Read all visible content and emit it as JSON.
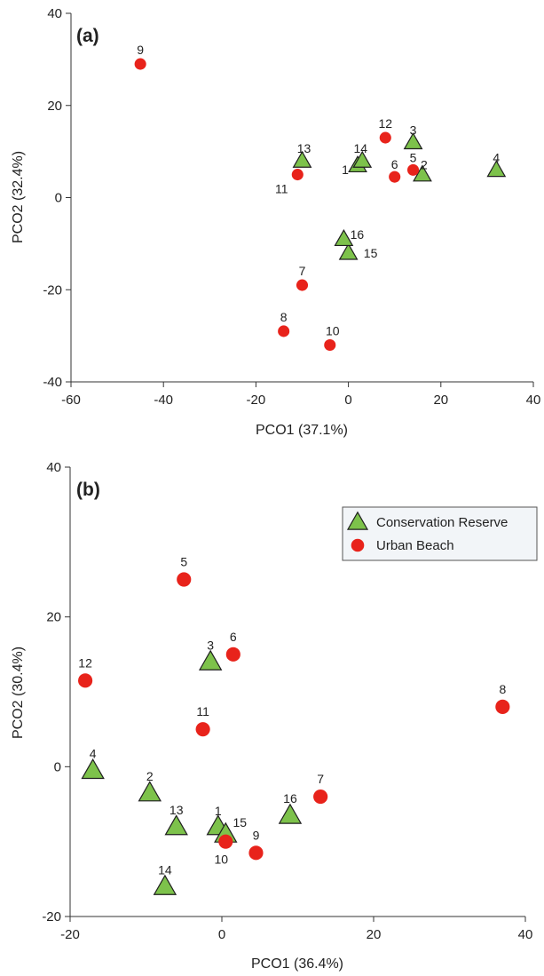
{
  "chart_data": [
    {
      "type": "scatter",
      "panel_label": "(a)",
      "xlabel": "PCO1 (37.1%)",
      "ylabel": "PCO2 (32.4%)",
      "xlim": [
        -60,
        40
      ],
      "ylim": [
        -40,
        40
      ],
      "xticks": [
        -60,
        -40,
        -20,
        0,
        20,
        40
      ],
      "yticks": [
        -40,
        -20,
        0,
        20,
        40
      ],
      "grid": false,
      "series": [
        {
          "name": "Conservation Reserve",
          "marker": "triangle",
          "color": "#7dc24b",
          "points": [
            {
              "label": "1",
              "x": 2,
              "y": 7
            },
            {
              "label": "2",
              "x": 16,
              "y": 5
            },
            {
              "label": "3",
              "x": 14,
              "y": 12
            },
            {
              "label": "4",
              "x": 32,
              "y": 6
            },
            {
              "label": "13",
              "x": -10,
              "y": 8
            },
            {
              "label": "14",
              "x": 3,
              "y": 8
            },
            {
              "label": "15",
              "x": 0,
              "y": -12
            },
            {
              "label": "16",
              "x": -1,
              "y": -9
            }
          ]
        },
        {
          "name": "Urban Beach",
          "marker": "circle",
          "color": "#e8231b",
          "points": [
            {
              "label": "5",
              "x": 14,
              "y": 6
            },
            {
              "label": "6",
              "x": 10,
              "y": 4.5
            },
            {
              "label": "7",
              "x": -10,
              "y": -19
            },
            {
              "label": "8",
              "x": -14,
              "y": -29
            },
            {
              "label": "9",
              "x": -45,
              "y": 29
            },
            {
              "label": "10",
              "x": -4,
              "y": -32
            },
            {
              "label": "11",
              "x": -11,
              "y": 5
            },
            {
              "label": "12",
              "x": 8,
              "y": 13
            }
          ]
        }
      ]
    },
    {
      "type": "scatter",
      "panel_label": "(b)",
      "xlabel": "PCO1 (36.4%)",
      "ylabel": "PCO2 (30.4%)",
      "xlim": [
        -20,
        40
      ],
      "ylim": [
        -20,
        40
      ],
      "xticks": [
        -20,
        0,
        20,
        40
      ],
      "yticks": [
        -20,
        0,
        20,
        40
      ],
      "grid": false,
      "legend_position": "top-right",
      "series": [
        {
          "name": "Conservation Reserve",
          "marker": "triangle",
          "color": "#7dc24b",
          "points": [
            {
              "label": "1",
              "x": -0.5,
              "y": -8
            },
            {
              "label": "2",
              "x": -9.5,
              "y": -3.5
            },
            {
              "label": "3",
              "x": -1.5,
              "y": 14
            },
            {
              "label": "4",
              "x": -17,
              "y": -0.5
            },
            {
              "label": "13",
              "x": -6,
              "y": -8
            },
            {
              "label": "14",
              "x": -7.5,
              "y": -16
            },
            {
              "label": "15",
              "x": 0.5,
              "y": -9
            },
            {
              "label": "16",
              "x": 9,
              "y": -6.5
            }
          ]
        },
        {
          "name": "Urban Beach",
          "marker": "circle",
          "color": "#e8231b",
          "points": [
            {
              "label": "5",
              "x": -5,
              "y": 25
            },
            {
              "label": "6",
              "x": 1.5,
              "y": 15
            },
            {
              "label": "7",
              "x": 13,
              "y": -4
            },
            {
              "label": "8",
              "x": 37,
              "y": 8
            },
            {
              "label": "9",
              "x": 4.5,
              "y": -11.5
            },
            {
              "label": "10",
              "x": 0.5,
              "y": -10
            },
            {
              "label": "11",
              "x": -2.5,
              "y": 5
            },
            {
              "label": "12",
              "x": -18,
              "y": 11.5
            }
          ]
        }
      ]
    }
  ]
}
